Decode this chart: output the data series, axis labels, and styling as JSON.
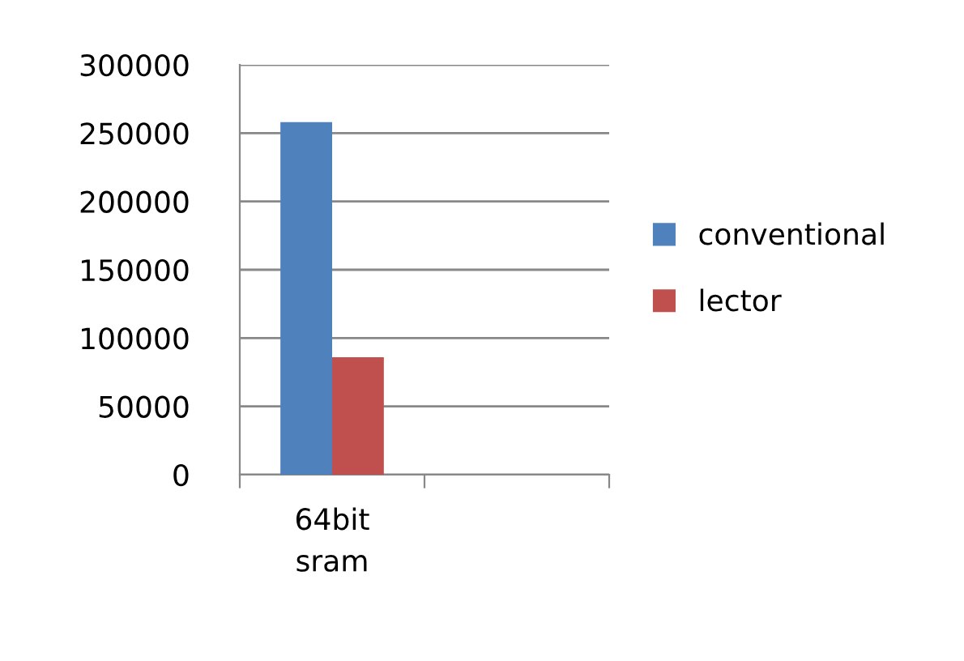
{
  "chart_data": {
    "type": "bar",
    "categories": [
      "64bit\nsram",
      null
    ],
    "series": [
      {
        "name": "conventional",
        "color": "#4f81bd",
        "values": [
          258000,
          null
        ]
      },
      {
        "name": "lector",
        "color": "#c0504d",
        "values": [
          86000,
          null
        ]
      }
    ],
    "ylim": [
      0,
      300000
    ],
    "yticks": [
      0,
      50000,
      100000,
      150000,
      200000,
      250000,
      300000
    ],
    "grid": "y",
    "legend": "right"
  }
}
